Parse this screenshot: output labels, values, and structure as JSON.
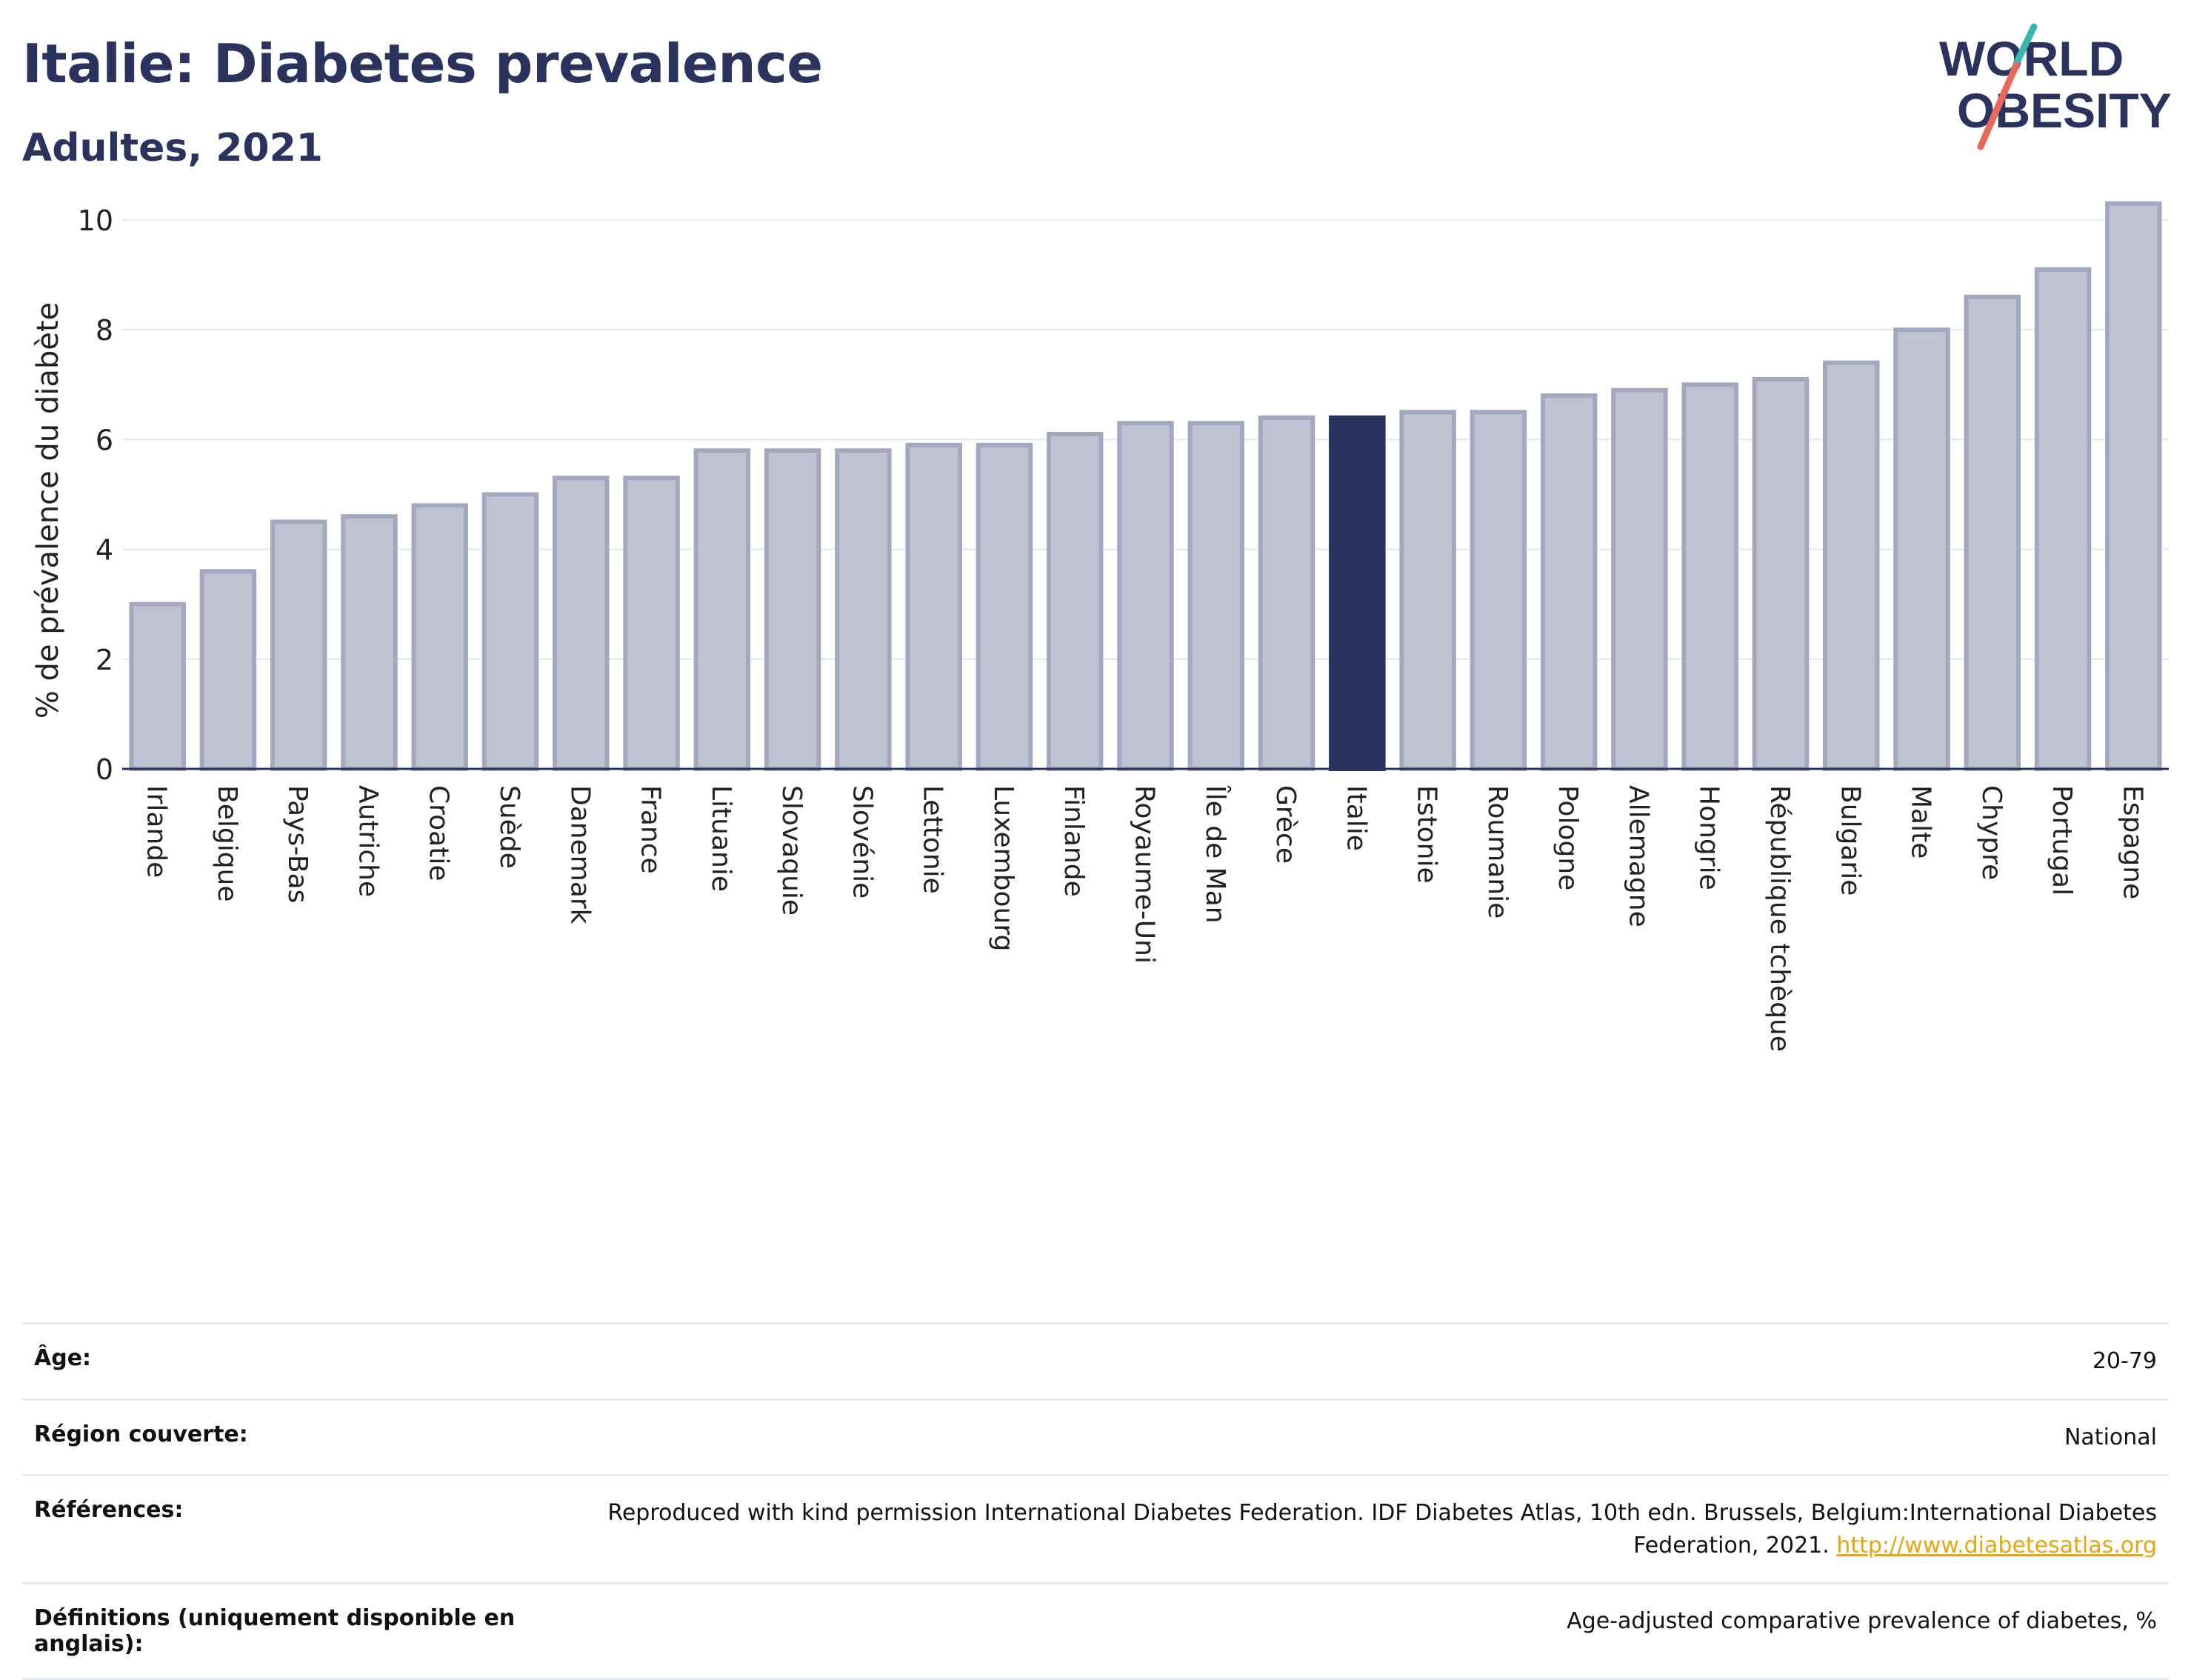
{
  "header": {
    "title": "Italie: Diabetes prevalence",
    "subtitle": "Adultes, 2021"
  },
  "logo": {
    "line1": "WORLD",
    "line2": "OBESITY",
    "accent_teal": "#3ab5b0",
    "accent_red": "#e8685a"
  },
  "chart_data": {
    "type": "bar",
    "ylabel": "% de prévalence du diabète",
    "xlabel": "",
    "ylim": [
      0,
      10.5
    ],
    "yticks": [
      0,
      2,
      4,
      6,
      8,
      10
    ],
    "grid": true,
    "highlight": "Italie",
    "colors": {
      "bar": "#bfc2d1",
      "bar_edge": "#a4a8bf",
      "highlight": "#2a335e"
    },
    "categories": [
      "Irlande",
      "Belgique",
      "Pays-Bas",
      "Autriche",
      "Croatie",
      "Suède",
      "Danemark",
      "France",
      "Lituanie",
      "Slovaquie",
      "Slovénie",
      "Lettonie",
      "Luxembourg",
      "Finlande",
      "Royaume-Uni",
      "Île de Man",
      "Grèce",
      "Italie",
      "Estonie",
      "Roumanie",
      "Pologne",
      "Allemagne",
      "Hongrie",
      "République tchèque",
      "Bulgarie",
      "Malte",
      "Chypre",
      "Portugal",
      "Espagne"
    ],
    "values": [
      3.0,
      3.6,
      4.5,
      4.6,
      4.8,
      5.0,
      5.3,
      5.3,
      5.8,
      5.8,
      5.8,
      5.9,
      5.9,
      6.1,
      6.3,
      6.3,
      6.4,
      6.4,
      6.5,
      6.5,
      6.8,
      6.9,
      7.0,
      7.1,
      7.4,
      8.0,
      8.6,
      9.1,
      10.3
    ]
  },
  "meta": [
    {
      "key": "Âge:",
      "value": "20-79"
    },
    {
      "key": "Région couverte:",
      "value": "National"
    },
    {
      "key": "Références:",
      "value": "Reproduced with kind permission International Diabetes Federation.  IDF Diabetes Atlas, 10th edn. Brussels, Belgium:International Diabetes Federation, 2021.",
      "link": "http://www.diabetesatlas.org"
    },
    {
      "key": "Définitions (uniquement disponible en anglais):",
      "value": "Age-adjusted comparative prevalence of diabetes, %"
    }
  ]
}
